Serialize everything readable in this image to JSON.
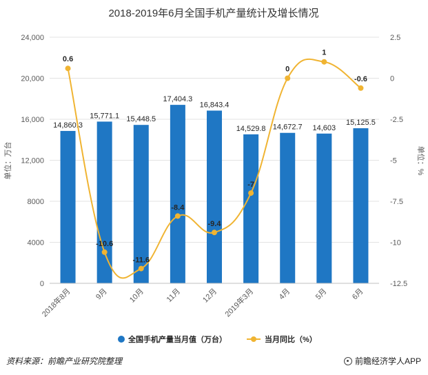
{
  "chart_data": {
    "type": "bar",
    "title": "2018-2019年6月全国手机产量统计及增长情况",
    "categories": [
      "2018年8月",
      "9月",
      "10月",
      "11月",
      "12月",
      "2019年3月",
      "4月",
      "5月",
      "6月"
    ],
    "series": [
      {
        "name": "全国手机产量当月值（万台）",
        "type": "bar",
        "axis": "left",
        "color": "#1f77c4",
        "values": [
          14860.3,
          15771.1,
          15448.5,
          17404.3,
          16843.4,
          14529.8,
          14672.7,
          14603,
          15125.5
        ],
        "labels": [
          "14,860.3",
          "15,771.1",
          "15,448.5",
          "17,404.3",
          "16,843.4",
          "14,529.8",
          "14,672.7",
          "14,603",
          "15,125.5"
        ]
      },
      {
        "name": "当月同比（%）",
        "type": "line",
        "axis": "right",
        "color": "#f0b432",
        "values": [
          0.6,
          -10.6,
          -11.6,
          -8.4,
          -9.4,
          -7,
          0,
          1,
          -0.6
        ],
        "labels": [
          "0.6",
          "-10.6",
          "-11.6",
          "-8.4",
          "-9.4",
          "-7",
          "0",
          "1",
          "-0.6"
        ]
      }
    ],
    "left_axis": {
      "label": "单位：万台",
      "ylim": [
        0,
        24000
      ],
      "ticks": [
        "0",
        "4000",
        "8000",
        "12,000",
        "16,000",
        "20,000",
        "24,000"
      ],
      "tick_values": [
        0,
        4000,
        8000,
        12000,
        16000,
        20000,
        24000
      ]
    },
    "right_axis": {
      "label": "单位：%",
      "ylim": [
        -12.5,
        2.5
      ],
      "ticks": [
        "-12.5",
        "-10",
        "-7.5",
        "-5",
        "-2.5",
        "0",
        "2.5"
      ],
      "tick_values": [
        -12.5,
        -10,
        -7.5,
        -5,
        -2.5,
        0,
        2.5
      ]
    },
    "grid": true,
    "legend_position": "bottom"
  },
  "footer": {
    "source": "资料来源：前瞻产业研究院整理",
    "brand": "前瞻经济学人APP",
    "brand_icon": "brand-logo-icon"
  },
  "watermark": "前瞻产业研究院"
}
